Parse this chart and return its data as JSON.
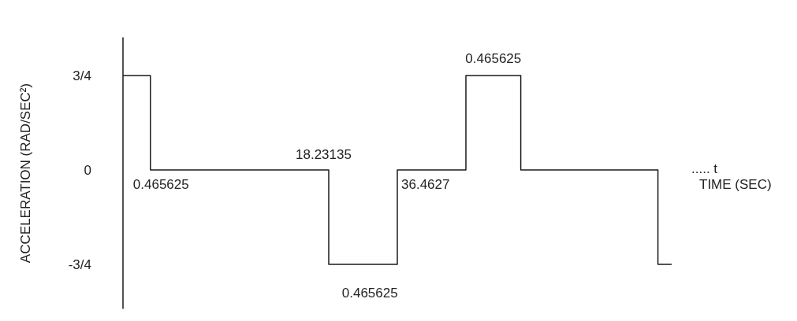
{
  "chart_data": {
    "type": "step",
    "ylabel": "ACCELERATION (RAD/SEC²)",
    "xlabel": "TIME (SEC)",
    "categories": [
      null,
      null,
      null,
      null,
      null,
      null,
      null,
      null,
      null,
      null,
      null,
      null,
      null,
      null,
      null,
      null,
      null,
      null,
      null,
      null,
      null,
      null,
      null,
      null,
      null,
      null,
      null,
      null,
      null,
      null,
      null,
      null,
      null,
      null,
      null,
      null,
      null,
      null,
      null,
      null,
      null
    ],
    "series": [
      {
        "color": "#1a1a1a",
        "values": [
          0.75,
          0.75,
          0,
          0,
          0,
          0,
          0,
          0,
          0,
          0,
          0,
          0,
          0,
          0,
          0,
          -0.75,
          -0.75,
          -0.75,
          -0.75,
          -0.75,
          0,
          0,
          0,
          0,
          0,
          0.75,
          0.75,
          0.75,
          0.75,
          0,
          0,
          0,
          0,
          0,
          0,
          0,
          0,
          0,
          0,
          -0.75,
          -0.75
        ]
      }
    ],
    "ylim": [
      -1.1,
      1.05
    ],
    "yticks": [
      {
        "value": 0.75,
        "label": "3/4"
      },
      0,
      {
        "value": -0.75,
        "label": "-3/4"
      }
    ],
    "tick_labels": "y",
    "grid": false,
    "marker": "none",
    "line_style": "solid",
    "annotations": [
      "0.465625",
      "18.23135",
      "0.465625",
      "36.4627",
      "0.465625",
      "..... t"
    ]
  }
}
